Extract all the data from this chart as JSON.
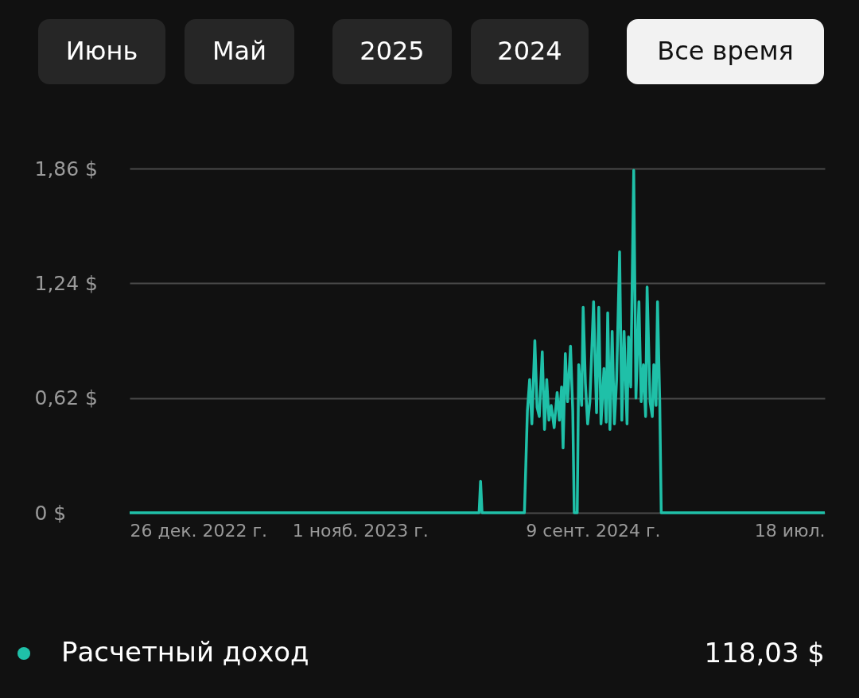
{
  "chart_data": {
    "type": "line",
    "x": [
      "2022-12-26",
      "2024-04-09",
      "2024-04-11",
      "2024-04-13",
      "2024-06-09",
      "2024-06-13",
      "2024-06-16",
      "2024-06-19",
      "2024-06-23",
      "2024-06-26",
      "2024-06-29",
      "2024-07-03",
      "2024-07-06",
      "2024-07-09",
      "2024-07-12",
      "2024-07-15",
      "2024-07-19",
      "2024-07-23",
      "2024-07-26",
      "2024-07-29",
      "2024-07-31",
      "2024-08-03",
      "2024-08-06",
      "2024-08-10",
      "2024-08-13",
      "2024-08-15",
      "2024-08-19",
      "2024-08-21",
      "2024-08-25",
      "2024-08-27",
      "2024-08-30",
      "2024-09-02",
      "2024-09-05",
      "2024-09-10",
      "2024-09-14",
      "2024-09-17",
      "2024-09-20",
      "2024-09-24",
      "2024-09-27",
      "2024-09-29",
      "2024-10-02",
      "2024-10-05",
      "2024-10-08",
      "2024-10-11",
      "2024-10-15",
      "2024-10-18",
      "2024-10-21",
      "2024-10-25",
      "2024-10-27",
      "2024-10-30",
      "2024-11-03",
      "2024-11-06",
      "2024-11-10",
      "2024-11-13",
      "2024-11-16",
      "2024-11-19",
      "2024-11-21",
      "2024-11-25",
      "2024-11-28",
      "2024-11-30",
      "2024-12-03",
      "2024-12-05",
      "2024-12-08",
      "2024-12-10",
      "2025-07-18"
    ],
    "series": [
      {
        "name": "Расчетный доход",
        "color": "#1fc0a8",
        "values": [
          0,
          0,
          0.17,
          0,
          0,
          0.55,
          0.72,
          0.48,
          0.93,
          0.57,
          0.52,
          0.87,
          0.45,
          0.72,
          0.5,
          0.58,
          0.46,
          0.65,
          0.5,
          0.68,
          0.35,
          0.86,
          0.6,
          0.9,
          0.55,
          0,
          0,
          0.8,
          0.58,
          1.11,
          0.7,
          0.48,
          0.6,
          1.14,
          0.54,
          1.11,
          0.48,
          0.78,
          0.49,
          1.08,
          0.45,
          0.98,
          0.48,
          0.72,
          1.41,
          0.5,
          0.98,
          0.48,
          0.95,
          0.68,
          1.85,
          0.62,
          1.14,
          0.6,
          0.8,
          0.52,
          1.22,
          0.6,
          0.52,
          0.8,
          0.58,
          1.14,
          0.6,
          0,
          0
        ]
      }
    ],
    "xlim": [
      "2022-12-26",
      "2025-07-18"
    ],
    "xticks": [
      {
        "value": "2022-12-26",
        "label": "26 дек. 2022 г."
      },
      {
        "value": "2023-11-01",
        "label": "1 нояб. 2023 г."
      },
      {
        "value": "2024-09-09",
        "label": "9 сент. 2024 г."
      },
      {
        "value": "2025-07-18",
        "label": "18 июл."
      }
    ],
    "ylim": [
      0,
      1.86
    ],
    "yticks": [
      {
        "value": 0,
        "label": "0 $"
      },
      {
        "value": 0.62,
        "label": "0,62 $"
      },
      {
        "value": 1.24,
        "label": "1,24 $"
      },
      {
        "value": 1.86,
        "label": "1,86 $"
      }
    ],
    "grid": "y",
    "legend": "bottom left",
    "line_style": "solid",
    "marker": "none",
    "annotations": [
      "Июнь",
      "Май",
      "2025",
      "2024",
      "Все время",
      "118,03 $"
    ]
  }
}
